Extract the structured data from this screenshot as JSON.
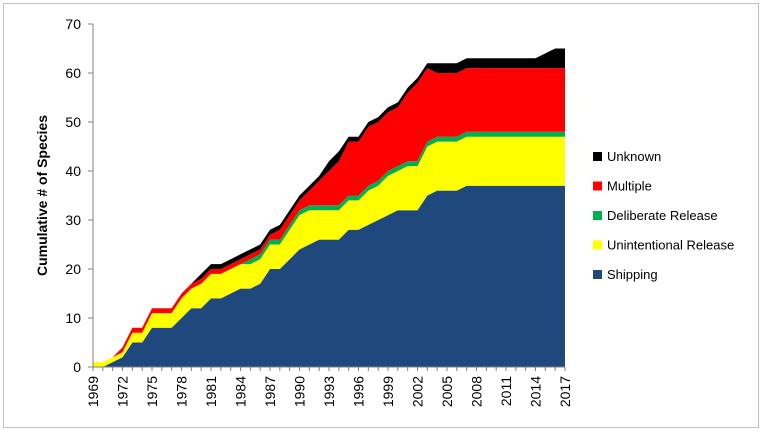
{
  "chart_data": {
    "type": "area",
    "stacked": true,
    "title": "",
    "xlabel": "",
    "ylabel": "Cumulative # of Species",
    "ylim": [
      0,
      70
    ],
    "yticks": [
      0,
      10,
      20,
      30,
      40,
      50,
      60,
      70
    ],
    "xticks": [
      1969,
      1972,
      1975,
      1978,
      1981,
      1984,
      1987,
      1990,
      1993,
      1996,
      1999,
      2002,
      2005,
      2008,
      2011,
      2014,
      2017
    ],
    "grid": false,
    "legend_position": "right",
    "x": [
      1969,
      1970,
      1971,
      1972,
      1973,
      1974,
      1975,
      1976,
      1977,
      1978,
      1979,
      1980,
      1981,
      1982,
      1983,
      1984,
      1985,
      1986,
      1987,
      1988,
      1989,
      1990,
      1991,
      1992,
      1993,
      1994,
      1995,
      1996,
      1997,
      1998,
      1999,
      2000,
      2001,
      2002,
      2003,
      2004,
      2005,
      2006,
      2007,
      2008,
      2009,
      2010,
      2011,
      2012,
      2013,
      2014,
      2015,
      2016,
      2017
    ],
    "series": [
      {
        "name": "Shipping",
        "color": "#1f497d",
        "values": [
          0,
          0,
          1,
          2,
          5,
          5,
          8,
          8,
          8,
          10,
          12,
          12,
          14,
          14,
          15,
          16,
          16,
          17,
          20,
          20,
          22,
          24,
          25,
          26,
          26,
          26,
          28,
          28,
          29,
          30,
          31,
          32,
          32,
          32,
          35,
          36,
          36,
          36,
          37,
          37,
          37,
          37,
          37,
          37,
          37,
          37,
          37,
          37,
          37
        ]
      },
      {
        "name": "Unintentional Release",
        "color": "#ffff00",
        "values": [
          1,
          1,
          1,
          1,
          2,
          2,
          3,
          3,
          3,
          4,
          4,
          5,
          5,
          5,
          5,
          5,
          5,
          5,
          5,
          5,
          6,
          7,
          7,
          6,
          6,
          6,
          6,
          6,
          7,
          7,
          8,
          8,
          9,
          9,
          10,
          10,
          10,
          10,
          10,
          10,
          10,
          10,
          10,
          10,
          10,
          10,
          10,
          10,
          10
        ]
      },
      {
        "name": "Deliberate Release",
        "color": "#00b050",
        "values": [
          0,
          0,
          0,
          0,
          0,
          0,
          0,
          0,
          0,
          0,
          0,
          0,
          0,
          0,
          0,
          0,
          1,
          1,
          1,
          1,
          1,
          1,
          1,
          1,
          1,
          1,
          1,
          1,
          1,
          1,
          1,
          1,
          1,
          1,
          1,
          1,
          1,
          1,
          1,
          1,
          1,
          1,
          1,
          1,
          1,
          1,
          1,
          1,
          1
        ]
      },
      {
        "name": "Multiple",
        "color": "#ff0000",
        "values": [
          0,
          0,
          0,
          1,
          1,
          1,
          1,
          1,
          1,
          1,
          1,
          1,
          1,
          1,
          1,
          1,
          1,
          1,
          1,
          2,
          2,
          2,
          3,
          5,
          7,
          9,
          11,
          11,
          12,
          12,
          12,
          12,
          14,
          16,
          15,
          13,
          13,
          13,
          13,
          13,
          13,
          13,
          13,
          13,
          13,
          13,
          13,
          13,
          13
        ]
      },
      {
        "name": "Unknown",
        "color": "#000000",
        "values": [
          0,
          0,
          0,
          0,
          0,
          0,
          0,
          0,
          0,
          0,
          0,
          1,
          1,
          1,
          1,
          1,
          1,
          1,
          1,
          1,
          1,
          1,
          1,
          1,
          2,
          2,
          1,
          1,
          1,
          1,
          1,
          1,
          1,
          1,
          1,
          2,
          2,
          2,
          2,
          2,
          2,
          2,
          2,
          2,
          2,
          2,
          3,
          4,
          4
        ]
      }
    ],
    "legend_order": [
      "Unknown",
      "Multiple",
      "Deliberate Release",
      "Unintentional Release",
      "Shipping"
    ]
  }
}
